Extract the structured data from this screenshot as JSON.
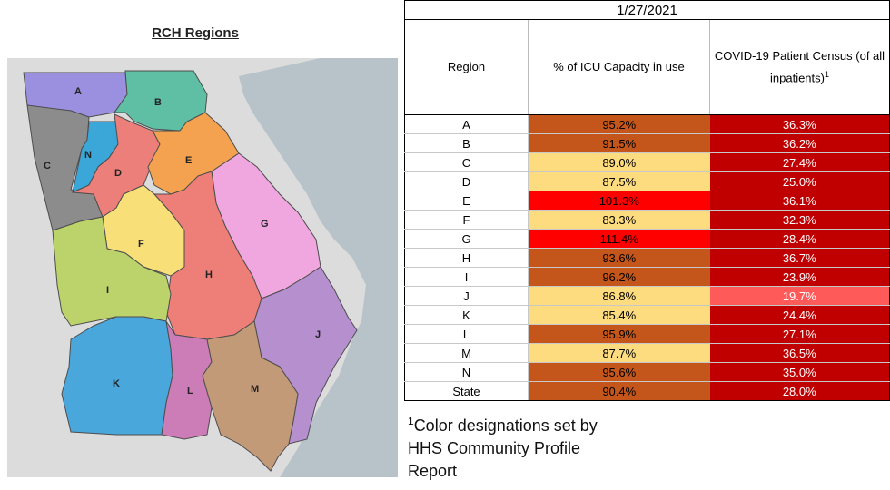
{
  "map": {
    "title": "RCH Regions",
    "labels": [
      "A",
      "B",
      "C",
      "N",
      "D",
      "E",
      "F",
      "G",
      "H",
      "I",
      "J",
      "K",
      "L",
      "M"
    ],
    "colors": {
      "A": "#9b8fe0",
      "B": "#5fbfa5",
      "C": "#8c8c8c",
      "N": "#3aa7d8",
      "D": "#ec7f7a",
      "E": "#f4a24f",
      "F": "#f8df78",
      "G": "#f0a6de",
      "H": "#ee7f78",
      "I": "#bbd36a",
      "J": "#b68fcf",
      "K": "#49a7db",
      "L": "#cc7db8",
      "M": "#c39a78",
      "ocean": "#b7c3c9",
      "land": "#dcdcdc"
    }
  },
  "table": {
    "date": "1/27/2021",
    "headers": {
      "region": "Region",
      "icu": "% of ICU Capacity in use",
      "census": "COVID-19 Patient Census (of all inpatients)",
      "census_sup": "1"
    },
    "rows": [
      {
        "region": "A",
        "icu": "95.2%",
        "icu_color": "#c5561b",
        "census": "36.3%",
        "census_color": "#c00000"
      },
      {
        "region": "B",
        "icu": "91.5%",
        "icu_color": "#c5561b",
        "census": "36.2%",
        "census_color": "#c00000"
      },
      {
        "region": "C",
        "icu": "89.0%",
        "icu_color": "#fddb7f",
        "census": "27.4%",
        "census_color": "#c00000"
      },
      {
        "region": "D",
        "icu": "87.5%",
        "icu_color": "#fddb7f",
        "census": "25.0%",
        "census_color": "#c00000"
      },
      {
        "region": "E",
        "icu": "101.3%",
        "icu_color": "#ff0000",
        "census": "36.1%",
        "census_color": "#c00000"
      },
      {
        "region": "F",
        "icu": "83.3%",
        "icu_color": "#fddb7f",
        "census": "32.3%",
        "census_color": "#c00000"
      },
      {
        "region": "G",
        "icu": "111.4%",
        "icu_color": "#ff0000",
        "census": "28.4%",
        "census_color": "#c00000"
      },
      {
        "region": "H",
        "icu": "93.6%",
        "icu_color": "#c5561b",
        "census": "36.7%",
        "census_color": "#c00000"
      },
      {
        "region": "I",
        "icu": "96.2%",
        "icu_color": "#c5561b",
        "census": "23.9%",
        "census_color": "#c00000"
      },
      {
        "region": "J",
        "icu": "86.8%",
        "icu_color": "#fddb7f",
        "census": "19.7%",
        "census_color": "#ff5a5a"
      },
      {
        "region": "K",
        "icu": "85.4%",
        "icu_color": "#fddb7f",
        "census": "24.4%",
        "census_color": "#c00000"
      },
      {
        "region": "L",
        "icu": "95.9%",
        "icu_color": "#c5561b",
        "census": "27.1%",
        "census_color": "#c00000"
      },
      {
        "region": "M",
        "icu": "87.7%",
        "icu_color": "#fddb7f",
        "census": "36.5%",
        "census_color": "#c00000"
      },
      {
        "region": "N",
        "icu": "95.6%",
        "icu_color": "#c5561b",
        "census": "35.0%",
        "census_color": "#c00000"
      }
    ],
    "state": {
      "region": "State",
      "icu": "90.4%",
      "icu_color": "#c5561b",
      "census": "28.0%",
      "census_color": "#c00000"
    }
  },
  "footnote": {
    "sup": "1",
    "line1": "Color designations set by",
    "line2": "HHS Community Profile",
    "line3": "Report"
  }
}
